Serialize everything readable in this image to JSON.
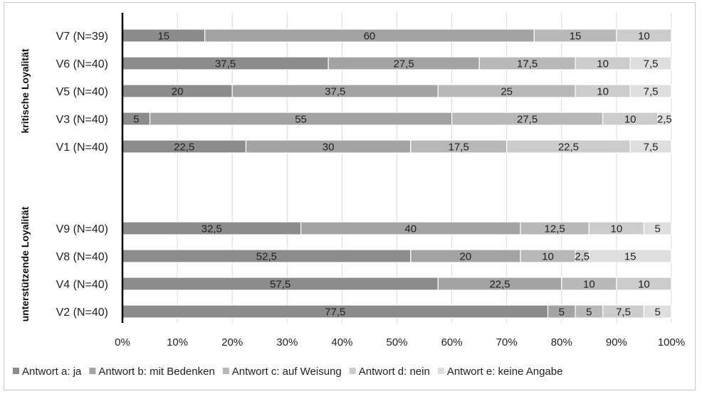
{
  "chart_data": {
    "type": "bar",
    "orientation": "horizontal",
    "stacked": true,
    "groups": [
      {
        "label": "kritische Loyalität",
        "categories": [
          "V7 (N=39)",
          "V6 (N=40)",
          "V5 (N=40)",
          "V3 (N=40)",
          "V1 (N=40)"
        ]
      },
      {
        "label": "unterstützende Loyalität",
        "categories": [
          "V9 (N=40)",
          "V8 (N=40)",
          "V4 (N=40)",
          "V2 (N=40)"
        ]
      }
    ],
    "categories": [
      "V7 (N=39)",
      "V6 (N=40)",
      "V5 (N=40)",
      "V3 (N=40)",
      "V1 (N=40)",
      "V9 (N=40)",
      "V8 (N=40)",
      "V4 (N=40)",
      "V2 (N=40)"
    ],
    "series": [
      {
        "name": "Antwort a: ja",
        "color": "#8c8c8c",
        "values": [
          15,
          37.5,
          20,
          5,
          22.5,
          32.5,
          52.5,
          57.5,
          77.5
        ],
        "labels": [
          "15",
          "37,5",
          "20",
          "5",
          "22,5",
          "32,5",
          "52,5",
          "57,5",
          "77,5"
        ]
      },
      {
        "name": "Antwort b: mit Bedenken",
        "color": "#a3a3a3",
        "values": [
          60,
          27.5,
          37.5,
          55,
          30,
          40,
          20,
          22.5,
          5
        ],
        "labels": [
          "60",
          "27,5",
          "37,5",
          "55",
          "30",
          "40",
          "20",
          "22,5",
          "5"
        ]
      },
      {
        "name": "Antwort c: auf Weisung",
        "color": "#b8b8b8",
        "values": [
          15,
          17.5,
          25,
          27.5,
          17.5,
          12.5,
          10,
          10,
          5
        ],
        "labels": [
          "15",
          "17,5",
          "25",
          "27,5",
          "17,5",
          "12,5",
          "10",
          "10",
          "5"
        ]
      },
      {
        "name": "Antwort d: nein",
        "color": "#cccccc",
        "values": [
          10,
          10,
          10,
          10,
          22.5,
          10,
          2.5,
          10,
          7.5
        ],
        "labels": [
          "10",
          "10",
          "10",
          "10",
          "22,5",
          "10",
          "2,5",
          "10",
          "7,5"
        ]
      },
      {
        "name": "Antwort e: keine Angabe",
        "color": "#dedede",
        "values": [
          0,
          7.5,
          7.5,
          2.5,
          7.5,
          5,
          15,
          0,
          5
        ],
        "labels": [
          "",
          "7,5",
          "7,5",
          "2,5",
          "7,5",
          "5",
          "15",
          "",
          "5"
        ]
      }
    ],
    "xlim": [
      0,
      100
    ],
    "x_ticks": [
      "0%",
      "10%",
      "20%",
      "30%",
      "40%",
      "50%",
      "60%",
      "70%",
      "80%",
      "90%",
      "100%"
    ],
    "grid": "vertical",
    "legend_position": "bottom"
  }
}
